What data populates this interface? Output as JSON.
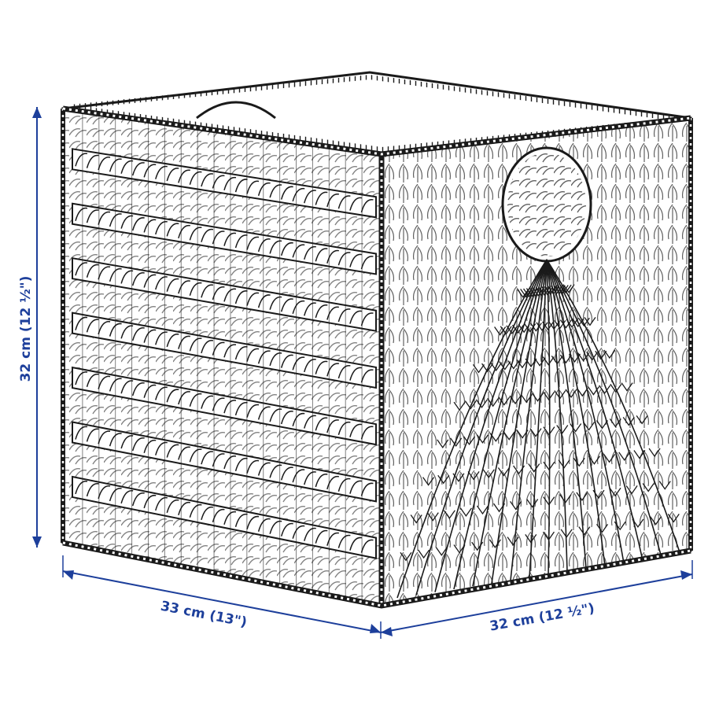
{
  "colors": {
    "dimension": "#1d3f9b",
    "outline": "#1a1a1a",
    "background": "#ffffff"
  },
  "dimensions": {
    "height_label": "32 cm (12 ½\")",
    "width_label": "33 cm (13\")",
    "depth_label": "32 cm (12 ½\")"
  },
  "illustration": {
    "subject": "woven-basket-icon"
  }
}
